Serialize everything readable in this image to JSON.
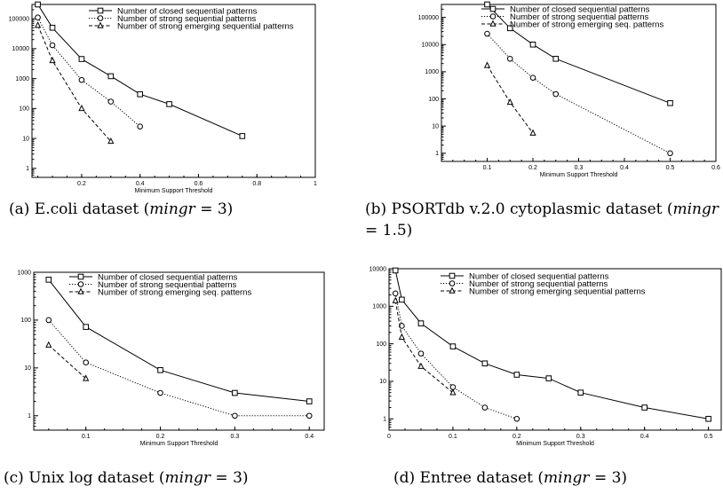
{
  "figure": {
    "captions": [
      {
        "pre": "(a) E.coli dataset (",
        "math": "mingr",
        "post": " = 3)"
      },
      {
        "pre": "(b) PSORTdb v.2.0 cytoplasmic dataset (",
        "math": "mingr",
        "post": " = 1.5)"
      },
      {
        "pre": "(c) Unix log dataset (",
        "math": "mingr",
        "post": " = 3)"
      },
      {
        "pre": "(d) Entree dataset (",
        "math": "mingr",
        "post": " = 3)"
      }
    ]
  },
  "chart_data": [
    {
      "type": "line",
      "title": "",
      "xlabel": "Minimum Support Threshold",
      "ylabel": "",
      "yscale": "log",
      "xlim": [
        0.03,
        1.0
      ],
      "ylim": [
        0.5,
        300000
      ],
      "xticks": [
        "0.2",
        "0.4",
        "0.6",
        "0.8",
        "1"
      ],
      "yticks": [
        "1",
        "10",
        "100",
        "1000",
        "10000",
        "100000"
      ],
      "legend": "top-right",
      "series": [
        {
          "name": "Number of closed sequential patterns",
          "marker": "square",
          "dash": "solid",
          "x": [
            0.05,
            0.1,
            0.2,
            0.3,
            0.4,
            0.5,
            0.75
          ],
          "y": [
            300000,
            50000,
            4500,
            1200,
            300,
            140,
            12
          ]
        },
        {
          "name": "Number of strong sequential patterns",
          "marker": "circle",
          "dash": "dotted",
          "x": [
            0.05,
            0.1,
            0.2,
            0.3,
            0.4
          ],
          "y": [
            110000,
            13000,
            900,
            170,
            25
          ]
        },
        {
          "name": "Number of strong emerging sequential patterns",
          "marker": "triangle",
          "dash": "dashed",
          "x": [
            0.05,
            0.1,
            0.2,
            0.3
          ],
          "y": [
            60000,
            4000,
            100,
            8
          ]
        }
      ]
    },
    {
      "type": "line",
      "title": "",
      "xlabel": "Minimum Support Threshold",
      "ylabel": "",
      "yscale": "log",
      "xlim": [
        0.0,
        0.6
      ],
      "ylim": [
        0.5,
        300000
      ],
      "xticks": [
        "0.1",
        "0.2",
        "0.3",
        "0.4",
        "0.5",
        "0.6"
      ],
      "yticks": [
        "1",
        "10",
        "100",
        "1000",
        "10000",
        "100000"
      ],
      "legend": "top-right",
      "series": [
        {
          "name": "Number of closed sequential patterns",
          "marker": "square",
          "dash": "solid",
          "x": [
            0.1,
            0.15,
            0.2,
            0.25,
            0.5
          ],
          "y": [
            300000,
            40000,
            10000,
            3000,
            70
          ]
        },
        {
          "name": "Number of strong sequential patterns",
          "marker": "circle",
          "dash": "dotted",
          "x": [
            0.1,
            0.15,
            0.2,
            0.25,
            0.5
          ],
          "y": [
            25000,
            3000,
            600,
            150,
            1
          ]
        },
        {
          "name": "Number of strong emerging seq. patterns",
          "marker": "triangle",
          "dash": "dashed",
          "x": [
            0.1,
            0.15,
            0.2
          ],
          "y": [
            1700,
            75,
            5.5
          ]
        }
      ]
    },
    {
      "type": "line",
      "title": "",
      "xlabel": "Minimum Support Threshold",
      "ylabel": "",
      "yscale": "log",
      "xlim": [
        0.03,
        0.42
      ],
      "ylim": [
        0.5,
        1000
      ],
      "xticks": [
        "0.1",
        "0.2",
        "0.3",
        "0.4"
      ],
      "yticks": [
        "1",
        "10",
        "100",
        "1000"
      ],
      "legend": "top-right",
      "series": [
        {
          "name": "Number of closed sequential patterns",
          "marker": "square",
          "dash": "solid",
          "x": [
            0.05,
            0.1,
            0.2,
            0.3,
            0.4
          ],
          "y": [
            700,
            72,
            9,
            3,
            2
          ]
        },
        {
          "name": "Number of strong sequential patterns",
          "marker": "circle",
          "dash": "dotted",
          "x": [
            0.05,
            0.1,
            0.2,
            0.3,
            0.4
          ],
          "y": [
            100,
            13,
            3,
            1,
            1
          ]
        },
        {
          "name": "Number of strong emerging seq. patterns",
          "marker": "triangle",
          "dash": "dashed",
          "x": [
            0.05,
            0.1
          ],
          "y": [
            30,
            6
          ]
        }
      ]
    },
    {
      "type": "line",
      "title": "",
      "xlabel": "Minimum Support Threshold",
      "ylabel": "",
      "yscale": "log",
      "xlim": [
        0.0,
        0.52
      ],
      "ylim": [
        0.5,
        10000
      ],
      "xticks": [
        "0",
        "0.1",
        "0.2",
        "0.3",
        "0.4",
        "0.5"
      ],
      "yticks": [
        "1",
        "10",
        "100",
        "1000",
        "10000"
      ],
      "legend": "top-right",
      "series": [
        {
          "name": "Number of closed sequential patterns",
          "marker": "square",
          "dash": "solid",
          "x": [
            0.01,
            0.02,
            0.05,
            0.1,
            0.15,
            0.2,
            0.25,
            0.3,
            0.4,
            0.5
          ],
          "y": [
            9000,
            1500,
            350,
            85,
            30,
            15,
            12,
            5,
            2,
            1
          ]
        },
        {
          "name": "Number of strong sequential patterns",
          "marker": "circle",
          "dash": "dotted",
          "x": [
            0.01,
            0.02,
            0.05,
            0.1,
            0.15,
            0.2
          ],
          "y": [
            2200,
            300,
            55,
            7,
            2,
            1
          ]
        },
        {
          "name": "Number of strong emerging sequential patterns",
          "marker": "triangle",
          "dash": "dashed",
          "x": [
            0.01,
            0.02,
            0.05,
            0.1
          ],
          "y": [
            1400,
            150,
            25,
            5
          ]
        }
      ]
    }
  ]
}
